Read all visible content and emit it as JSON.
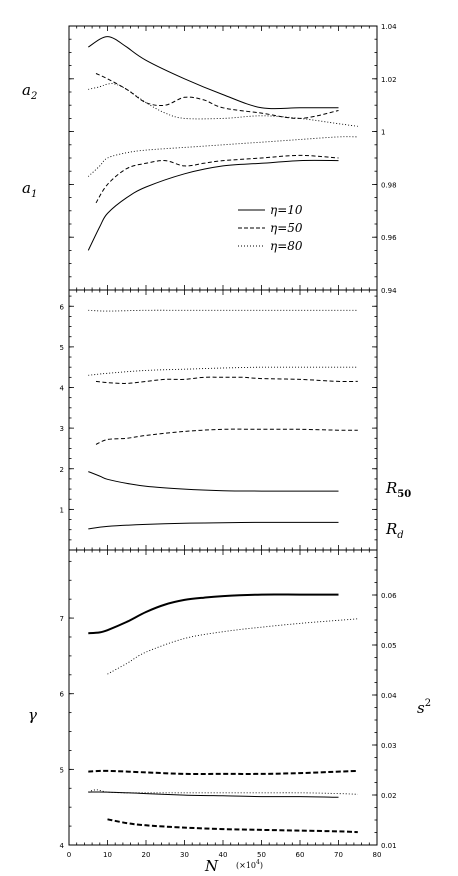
{
  "chart_data": [
    {
      "type": "line",
      "panel": "top",
      "x_range": [
        0,
        80
      ],
      "right_axis": {
        "ylim": [
          0.94,
          1.04
        ],
        "ticks": [
          "0.94",
          "0.96",
          "0.98",
          "1",
          "1.02",
          "1.04"
        ]
      },
      "left_labels": {
        "upper": "a",
        "upper_sub": "2",
        "lower": "a",
        "lower_sub": "1"
      },
      "legend": [
        {
          "label": "η=10",
          "style": "solid"
        },
        {
          "label": "η=50",
          "style": "dashed"
        },
        {
          "label": "η=80",
          "style": "dotted"
        }
      ],
      "series": [
        {
          "style": "solid",
          "group": "a2",
          "x": [
            5,
            8,
            10,
            12,
            15,
            20,
            30,
            40,
            50,
            60,
            70
          ],
          "y": [
            1.032,
            1.035,
            1.036,
            1.035,
            1.032,
            1.027,
            1.02,
            1.014,
            1.009,
            1.009,
            1.009
          ]
        },
        {
          "style": "dashed",
          "group": "a2",
          "x": [
            7,
            10,
            15,
            20,
            25,
            30,
            35,
            40,
            50,
            60,
            70
          ],
          "y": [
            1.022,
            1.02,
            1.016,
            1.011,
            1.01,
            1.013,
            1.012,
            1.009,
            1.007,
            1.005,
            1.008
          ]
        },
        {
          "style": "dotted",
          "group": "a2",
          "x": [
            5,
            8,
            10,
            12,
            15,
            20,
            25,
            30,
            40,
            50,
            60,
            70,
            75
          ],
          "y": [
            1.016,
            1.017,
            1.018,
            1.018,
            1.016,
            1.011,
            1.007,
            1.005,
            1.005,
            1.006,
            1.005,
            1.003,
            1.002
          ]
        },
        {
          "style": "solid",
          "group": "a1",
          "x": [
            5,
            8,
            10,
            15,
            20,
            30,
            40,
            50,
            60,
            70
          ],
          "y": [
            0.955,
            0.964,
            0.969,
            0.975,
            0.979,
            0.984,
            0.987,
            0.988,
            0.989,
            0.989
          ]
        },
        {
          "style": "dashed",
          "group": "a1",
          "x": [
            7,
            10,
            15,
            20,
            25,
            30,
            35,
            40,
            50,
            60,
            70
          ],
          "y": [
            0.973,
            0.98,
            0.986,
            0.988,
            0.989,
            0.987,
            0.988,
            0.989,
            0.99,
            0.991,
            0.99
          ]
        },
        {
          "style": "dotted",
          "group": "a1",
          "x": [
            5,
            8,
            10,
            15,
            20,
            30,
            40,
            50,
            60,
            70,
            75
          ],
          "y": [
            0.983,
            0.987,
            0.99,
            0.992,
            0.993,
            0.994,
            0.995,
            0.996,
            0.997,
            0.998,
            0.998
          ]
        }
      ]
    },
    {
      "type": "line",
      "panel": "middle",
      "x_range": [
        0,
        80
      ],
      "left_axis": {
        "ylim": [
          0,
          6.4
        ],
        "ticks": [
          "1",
          "2",
          "3",
          "4",
          "5",
          "6"
        ]
      },
      "right_label": {
        "top": "R",
        "top_sub": "50",
        "bottom": "R",
        "bottom_sub": "d"
      },
      "series": [
        {
          "style": "dotted",
          "x": [
            5,
            10,
            20,
            30,
            40,
            50,
            60,
            70,
            75
          ],
          "y": [
            5.9,
            5.88,
            5.9,
            5.9,
            5.9,
            5.9,
            5.9,
            5.9,
            5.9
          ]
        },
        {
          "style": "dotted",
          "x": [
            5,
            10,
            20,
            30,
            40,
            50,
            60,
            70,
            75
          ],
          "y": [
            4.3,
            4.35,
            4.42,
            4.45,
            4.48,
            4.5,
            4.5,
            4.5,
            4.5
          ]
        },
        {
          "style": "dashed",
          "x": [
            7,
            10,
            15,
            20,
            25,
            30,
            35,
            40,
            45,
            50,
            60,
            70,
            75
          ],
          "y": [
            4.15,
            4.12,
            4.1,
            4.15,
            4.2,
            4.2,
            4.25,
            4.25,
            4.25,
            4.22,
            4.2,
            4.15,
            4.15
          ]
        },
        {
          "style": "dashed",
          "x": [
            7,
            10,
            15,
            20,
            30,
            40,
            50,
            60,
            70,
            75
          ],
          "y": [
            2.6,
            2.72,
            2.75,
            2.82,
            2.92,
            2.97,
            2.97,
            2.97,
            2.95,
            2.95
          ]
        },
        {
          "style": "solid",
          "x": [
            5,
            8,
            10,
            15,
            20,
            30,
            40,
            50,
            60,
            70
          ],
          "y": [
            1.93,
            1.82,
            1.74,
            1.64,
            1.57,
            1.5,
            1.46,
            1.45,
            1.45,
            1.45
          ]
        },
        {
          "style": "solid",
          "x": [
            5,
            10,
            20,
            30,
            40,
            50,
            60,
            70
          ],
          "y": [
            0.52,
            0.58,
            0.63,
            0.66,
            0.67,
            0.68,
            0.68,
            0.68
          ]
        }
      ]
    },
    {
      "type": "line",
      "panel": "bottom",
      "x_range": [
        0,
        80
      ],
      "x_ticks": [
        "0",
        "10",
        "20",
        "30",
        "40",
        "50",
        "60",
        "70",
        "80"
      ],
      "xlabel": "N",
      "xlabel_unit": "(×10",
      "xlabel_unit_sup": "4",
      "xlabel_unit_end": ")",
      "left_axis": {
        "ylabel": "γ",
        "ylim": [
          4,
          7.9
        ],
        "ticks": [
          "4",
          "5",
          "6",
          "7"
        ]
      },
      "right_axis": {
        "ylabel": "s",
        "ylabel_sup": "2",
        "ylim": [
          0.01,
          0.069
        ],
        "ticks": [
          "0.01",
          "0.02",
          "0.03",
          "0.04",
          "0.05",
          "0.06"
        ]
      },
      "series": [
        {
          "style": "solid-thick",
          "axis": "left",
          "x": [
            5,
            8,
            10,
            15,
            20,
            25,
            30,
            35,
            40,
            50,
            60,
            70
          ],
          "y": [
            6.8,
            6.81,
            6.84,
            6.95,
            7.08,
            7.18,
            7.24,
            7.27,
            7.29,
            7.31,
            7.31,
            7.31
          ]
        },
        {
          "style": "dotted",
          "axis": "left",
          "x": [
            10,
            15,
            20,
            30,
            40,
            50,
            60,
            70,
            75
          ],
          "y": [
            6.26,
            6.4,
            6.55,
            6.73,
            6.82,
            6.88,
            6.93,
            6.97,
            6.99
          ]
        },
        {
          "style": "dashed-thick",
          "axis": "left",
          "x": [
            5,
            10,
            20,
            30,
            40,
            50,
            60,
            70,
            75
          ],
          "y": [
            4.97,
            4.98,
            4.96,
            4.94,
            4.94,
            4.94,
            4.95,
            4.97,
            4.98
          ]
        },
        {
          "style": "dotted",
          "axis": "left",
          "x": [
            5,
            7,
            10,
            15,
            20,
            30,
            40,
            50,
            60,
            70,
            75
          ],
          "y": [
            4.7,
            4.73,
            4.7,
            4.69,
            4.69,
            4.69,
            4.69,
            4.69,
            4.69,
            4.68,
            4.67
          ]
        },
        {
          "style": "solid",
          "axis": "left",
          "x": [
            5,
            10,
            20,
            30,
            40,
            50,
            60,
            70
          ],
          "y": [
            4.7,
            4.7,
            4.68,
            4.66,
            4.65,
            4.64,
            4.64,
            4.63
          ]
        },
        {
          "style": "dashed-thick",
          "axis": "left",
          "x": [
            10,
            15,
            20,
            30,
            40,
            50,
            60,
            70,
            75
          ],
          "y": [
            4.34,
            4.29,
            4.26,
            4.23,
            4.21,
            4.2,
            4.19,
            4.18,
            4.17
          ]
        }
      ]
    }
  ]
}
